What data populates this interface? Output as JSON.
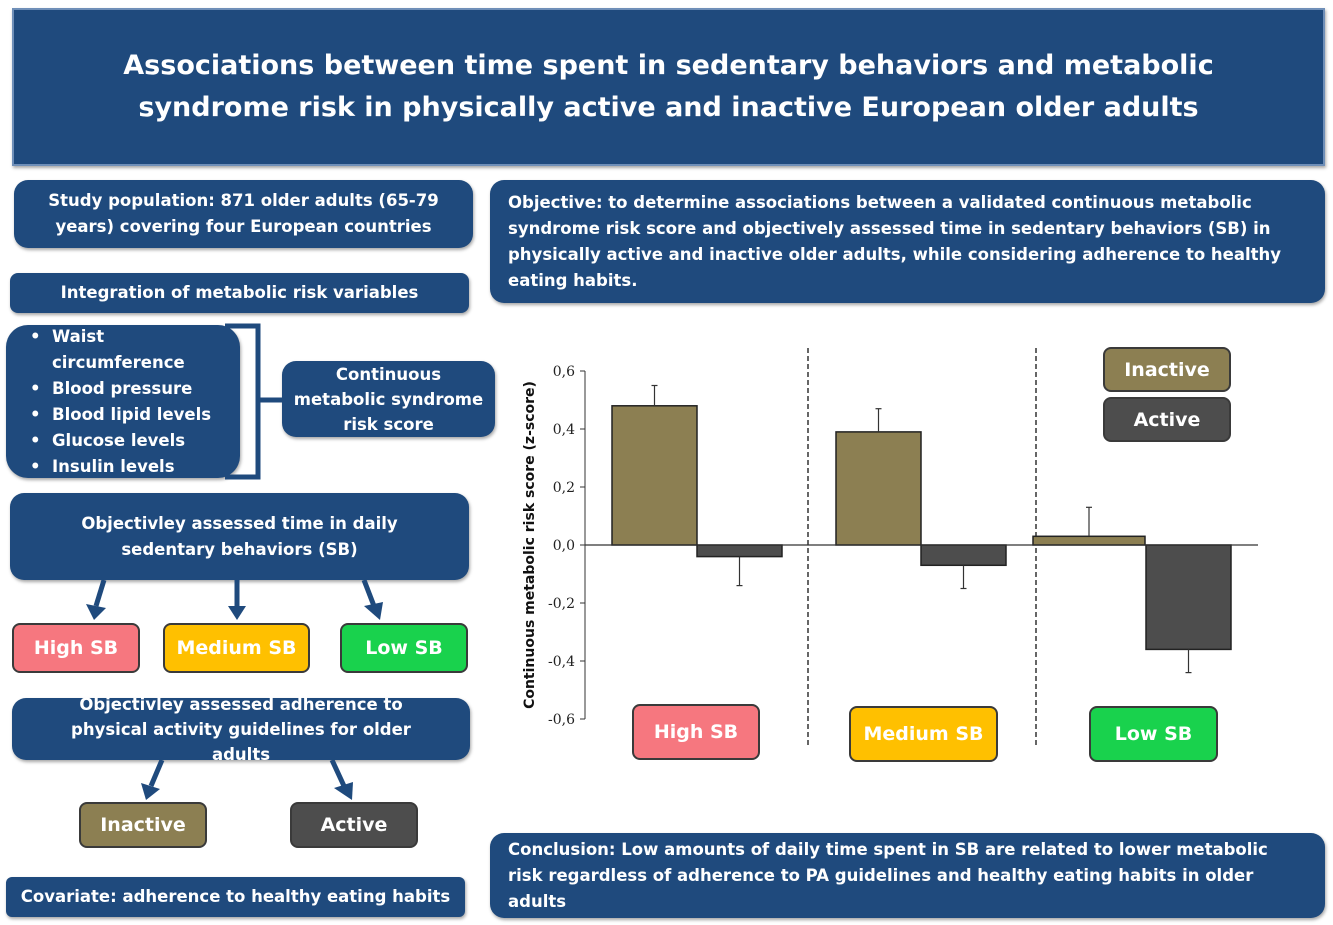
{
  "title": "Associations between time spent in sedentary behaviors and metabolic syndrome risk in physically active and inactive European older adults",
  "left": {
    "population": "Study population: 871 older adults (65-79 years) covering four European countries",
    "integration": "Integration of metabolic risk variables",
    "variables": [
      "Waist circumference",
      "Blood pressure",
      "Blood lipid levels",
      "Glucose levels",
      "Insulin levels"
    ],
    "score": "Continuous metabolic syndrome risk score",
    "sb_box": "Objectivley assessed time in daily sedentary behaviors (SB)",
    "sb_levels": [
      "High SB",
      "Medium SB",
      "Low SB"
    ],
    "pa_box": "Objectivley assessed adherence to physical activity guidelines for older adults",
    "pa_levels": [
      "Inactive",
      "Active"
    ],
    "covariate": "Covariate: adherence to healthy eating habits"
  },
  "objective": "Objective: to determine associations between a validated continuous metabolic syndrome risk score and objectively assessed time in sedentary behaviors (SB) in physically active and inactive older adults, while considering adherence to healthy eating habits.",
  "conclusion": "Conclusion: Low amounts of daily time spent in SB are related to lower metabolic risk regardless of adherence to PA guidelines and healthy eating habits in older adults",
  "colors": {
    "navy": "#1f4a7d",
    "inactive": "#8c7f52",
    "active": "#4d4d4d",
    "high": "#f6777f",
    "medium": "#ffc000",
    "low": "#19d24d"
  },
  "chart_data": {
    "type": "bar",
    "ylabel": "Continuous metabolic risk score (z-score)",
    "ylim": [
      -0.6,
      0.6
    ],
    "yticks": [
      "0,6",
      "0,4",
      "0,2",
      "0,0",
      "-0,2",
      "-0,4",
      "-0,6"
    ],
    "categories": [
      "High SB",
      "Medium SB",
      "Low SB"
    ],
    "legend": "top-right",
    "series": [
      {
        "name": "Inactive",
        "values": [
          0.48,
          0.39,
          0.03
        ],
        "error_upper": [
          0.55,
          0.47,
          0.13
        ]
      },
      {
        "name": "Active",
        "values": [
          -0.04,
          -0.07,
          -0.36
        ],
        "error_lower": [
          -0.14,
          -0.15,
          -0.44
        ]
      }
    ]
  }
}
